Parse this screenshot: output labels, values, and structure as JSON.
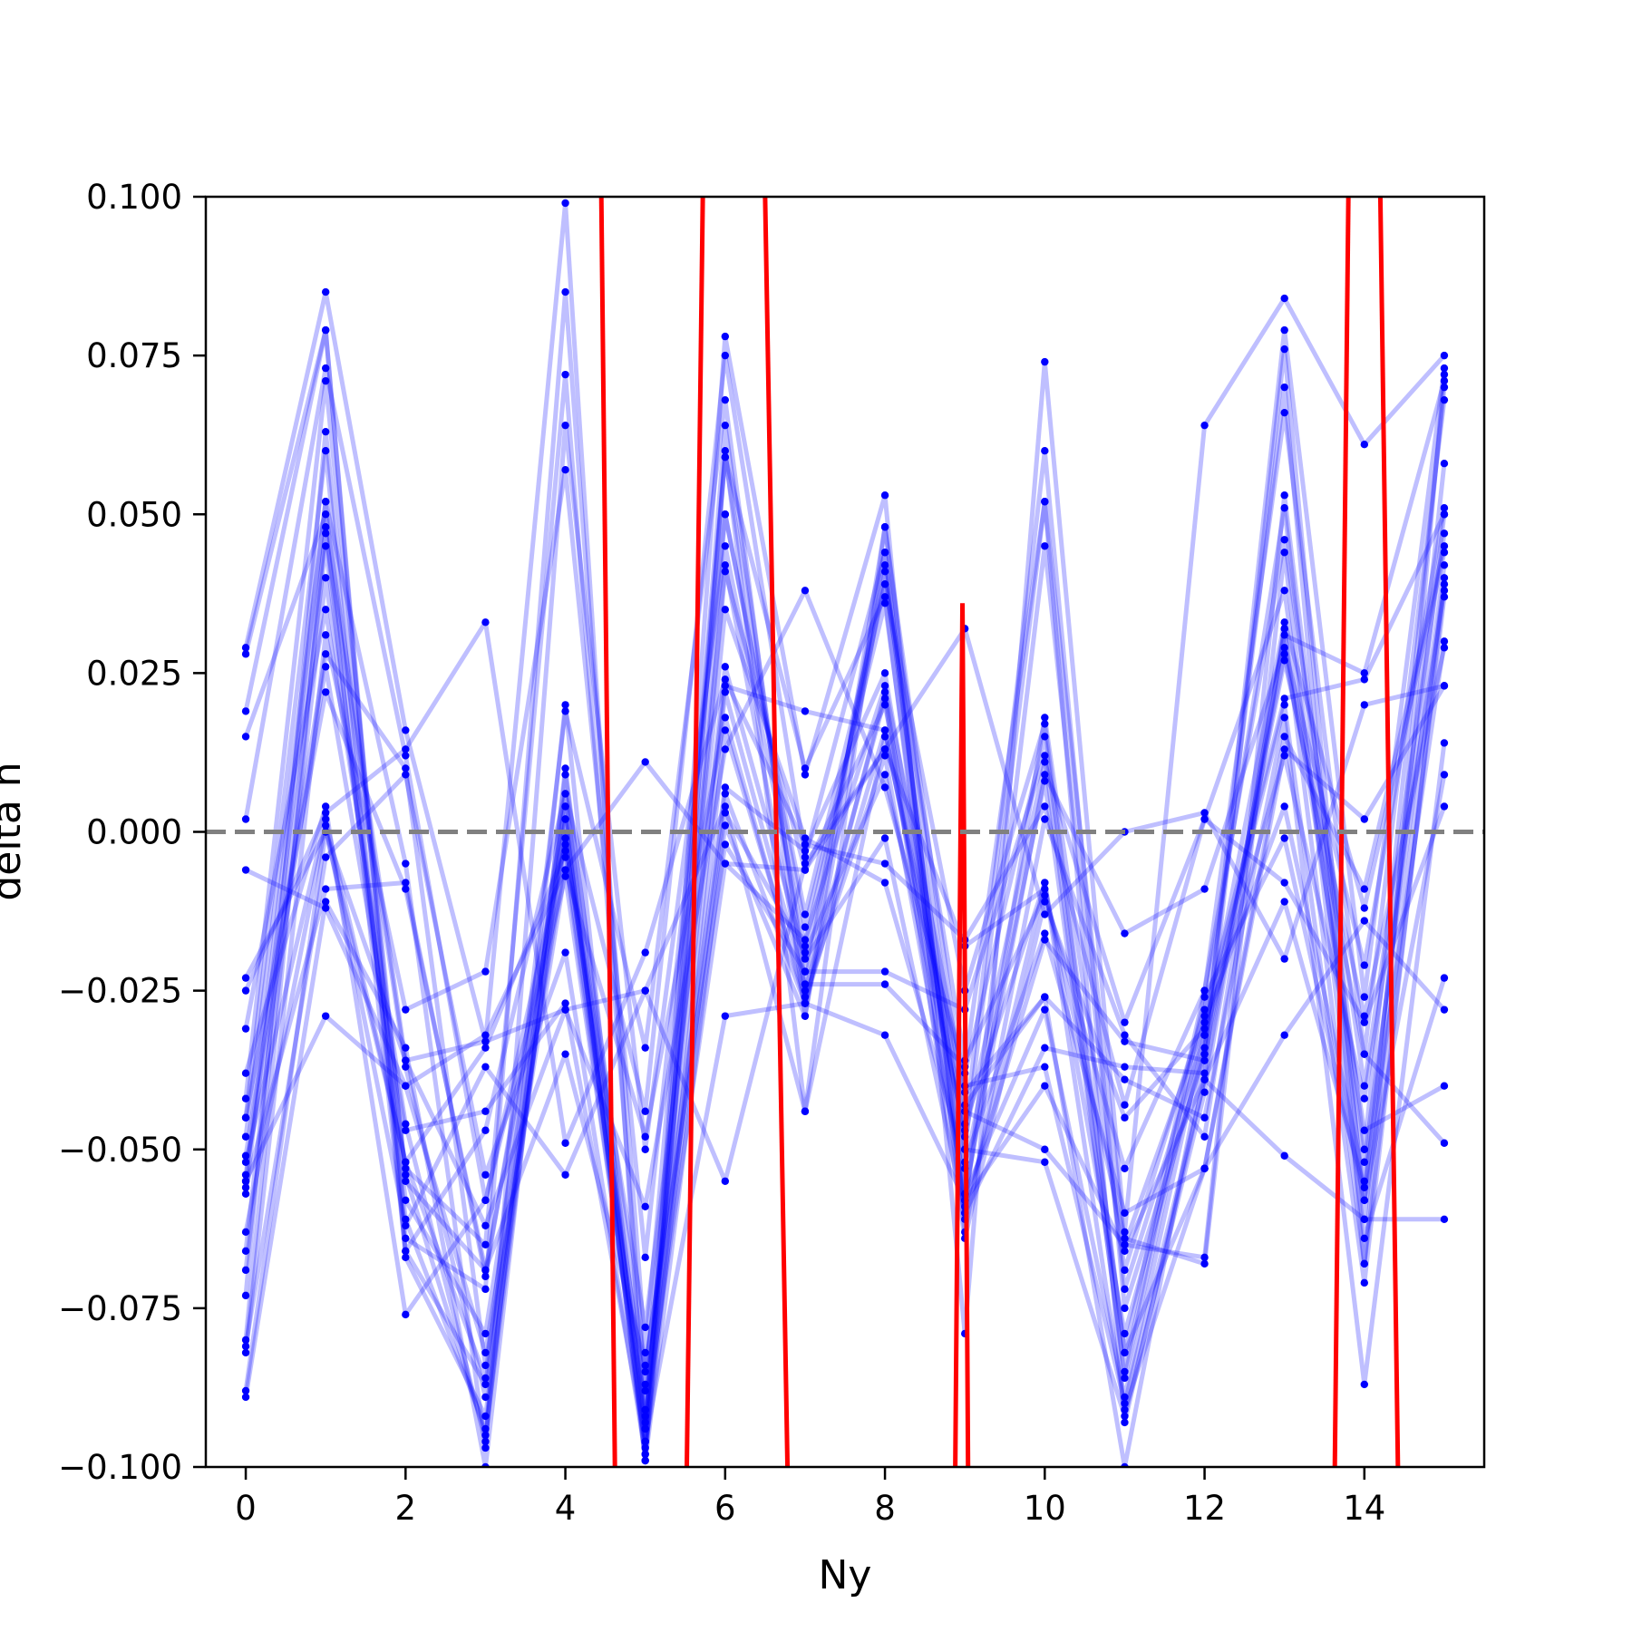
{
  "chart_data": {
    "type": "line",
    "title": "",
    "xlabel": "Ny",
    "ylabel": "delta n",
    "xlim": [
      -0.5,
      15.5
    ],
    "ylim": [
      -0.1,
      0.1
    ],
    "x": [
      0,
      1,
      2,
      3,
      4,
      5,
      6,
      7,
      8,
      9,
      10,
      11,
      12,
      13,
      14,
      15
    ],
    "x_ticks": [
      0,
      2,
      4,
      6,
      8,
      10,
      12,
      14
    ],
    "x_tick_labels": [
      "0",
      "2",
      "4",
      "6",
      "8",
      "10",
      "12",
      "14"
    ],
    "y_ticks": [
      -0.1,
      -0.075,
      -0.05,
      -0.025,
      0.0,
      0.025,
      0.05,
      0.075,
      0.1
    ],
    "y_tick_labels": [
      "−0.100",
      "−0.075",
      "−0.050",
      "−0.025",
      "0.000",
      "0.025",
      "0.050",
      "0.075",
      "0.100"
    ],
    "reference_line": {
      "y": 0.0,
      "style": "dashed",
      "color": "#808080"
    },
    "grid": false,
    "legend": "none",
    "colors": {
      "samples": "#0000ff",
      "mean": "#ff0000"
    },
    "series": [
      {
        "values": [
          0.029,
          0.085,
          0.016,
          -0.033,
          0.099,
          -0.096,
          0.078,
          0.009,
          0.053,
          -0.079,
          0.074,
          -0.063,
          0.064,
          0.084,
          0.061,
          0.075
        ]
      },
      {
        "values": [
          -0.088,
          0.0,
          -0.052,
          -0.086,
          0.019,
          -0.034,
          0.068,
          -0.029,
          0.048,
          -0.05,
          0.052,
          -0.065,
          -0.067,
          0.053,
          -0.05,
          0.07
        ]
      },
      {
        "values": [
          0.019,
          0.079,
          -0.064,
          -0.072,
          0.085,
          -0.082,
          0.059,
          -0.022,
          0.042,
          -0.058,
          0.018,
          -0.069,
          -0.028,
          0.051,
          -0.058,
          0.058
        ]
      },
      {
        "values": [
          -0.055,
          0.052,
          -0.005,
          -0.097,
          0.064,
          -0.05,
          0.045,
          -0.018,
          0.039,
          -0.036,
          -0.01,
          -0.053,
          -0.025,
          0.046,
          -0.04,
          0.047
        ]
      },
      {
        "values": [
          0.002,
          0.073,
          0.012,
          -0.058,
          -0.002,
          -0.078,
          0.023,
          0.019,
          0.016,
          -0.048,
          0.011,
          -0.03,
          0.002,
          0.038,
          -0.052,
          0.042
        ]
      },
      {
        "values": [
          -0.045,
          0.06,
          -0.066,
          -0.047,
          0.006,
          -0.044,
          0.075,
          -0.004,
          0.044,
          -0.06,
          -0.034,
          -0.037,
          -0.038,
          0.076,
          -0.061,
          0.04
        ]
      },
      {
        "values": [
          -0.069,
          0.04,
          -0.053,
          -0.065,
          0.072,
          -0.087,
          0.042,
          -0.025,
          0.021,
          -0.064,
          -0.011,
          -0.045,
          -0.031,
          0.02,
          -0.071,
          0.039
        ]
      },
      {
        "values": [
          -0.082,
          0.031,
          -0.028,
          -0.022,
          0.057,
          -0.067,
          0.05,
          -0.015,
          0.036,
          -0.057,
          0.009,
          -0.016,
          -0.009,
          0.029,
          -0.021,
          0.051
        ]
      },
      {
        "values": [
          0.015,
          0.05,
          -0.036,
          -0.062,
          -0.028,
          -0.059,
          0.013,
          0.038,
          0.007,
          -0.038,
          0.015,
          -0.082,
          -0.053,
          0.013,
          0.002,
          0.023
        ]
      },
      {
        "values": [
          -0.051,
          0.028,
          0.01,
          -0.084,
          -0.006,
          -0.048,
          0.018,
          -0.027,
          0.022,
          -0.059,
          -0.017,
          -0.033,
          -0.036,
          0.027,
          -0.029,
          0.029
        ]
      },
      {
        "values": [
          -0.054,
          0.026,
          -0.047,
          -0.044,
          -0.027,
          -0.096,
          0.059,
          0.01,
          0.037,
          -0.063,
          0.002,
          -0.032,
          -0.048,
          0.032,
          -0.068,
          0.037
        ]
      },
      {
        "values": [
          -0.063,
          0.001,
          -0.062,
          -0.037,
          -0.054,
          -0.025,
          0.004,
          -0.044,
          0.048,
          -0.043,
          -0.026,
          -0.039,
          -0.045,
          0.018,
          -0.087,
          0.014
        ]
      },
      {
        "values": [
          -0.025,
          0.003,
          0.013,
          0.033,
          -0.049,
          -0.019,
          0.024,
          -0.002,
          -0.005,
          -0.017,
          0.004,
          -0.043,
          0.002,
          -0.008,
          -0.03,
          0.004
        ]
      },
      {
        "values": [
          -0.006,
          -0.012,
          -0.04,
          -0.032,
          -0.006,
          0.011,
          -0.005,
          -0.006,
          0.013,
          0.032,
          -0.013,
          0.0,
          0.003,
          -0.02,
          0.02,
          0.023
        ]
      },
      {
        "values": [
          0.028,
          0.079,
          -0.067,
          -0.092,
          0.002,
          -0.097,
          0.022,
          -0.024,
          -0.024,
          -0.037,
          0.052,
          -0.093,
          -0.039,
          0.031,
          0.025,
          0.071
        ]
      },
      {
        "values": [
          -0.042,
          0.071,
          -0.055,
          -0.069,
          -0.001,
          -0.088,
          0.003,
          -0.019,
          0.009,
          -0.047,
          0.06,
          -0.075,
          -0.035,
          0.079,
          -0.026,
          0.073
        ]
      },
      {
        "values": [
          -0.089,
          -0.011,
          -0.034,
          -0.1,
          0.01,
          -0.091,
          0.026,
          -0.02,
          -0.001,
          -0.06,
          0.045,
          -0.072,
          -0.032,
          0.033,
          -0.012,
          0.044
        ]
      },
      {
        "values": [
          -0.038,
          0.004,
          -0.076,
          -0.058,
          -0.007,
          -0.094,
          0.006,
          -0.027,
          0.016,
          -0.046,
          -0.008,
          -0.091,
          -0.053,
          0.015,
          -0.009,
          0.045
        ]
      },
      {
        "values": [
          -0.081,
          -0.004,
          0.009,
          -0.054,
          -0.019,
          -0.098,
          0.016,
          -0.026,
          0.012,
          -0.057,
          -0.028,
          -0.089,
          -0.032,
          0.012,
          -0.042,
          0.038
        ]
      },
      {
        "values": [
          -0.056,
          -0.009,
          -0.008,
          -0.07,
          0.004,
          -0.099,
          0.001,
          -0.029,
          0.041,
          -0.053,
          0.008,
          -0.085,
          -0.026,
          -0.001,
          -0.058,
          0.009
        ]
      },
      {
        "values": [
          -0.052,
          0.002,
          -0.052,
          -0.034,
          -0.003,
          -0.092,
          -0.005,
          -0.017,
          0.023,
          -0.04,
          -0.037,
          -0.09,
          -0.039,
          -0.011,
          -0.056,
          0.03
        ]
      },
      {
        "values": [
          -0.057,
          0.047,
          -0.037,
          -0.089,
          0.006,
          -0.093,
          0.041,
          -0.006,
          0.02,
          -0.044,
          -0.05,
          -0.065,
          -0.03,
          0.004,
          -0.055,
          0.05
        ]
      },
      {
        "values": [
          -0.08,
          0.048,
          -0.066,
          -0.087,
          -0.001,
          -0.091,
          0.035,
          -0.001,
          -0.008,
          -0.052,
          -0.016,
          -0.06,
          -0.053,
          -0.032,
          -0.014,
          -0.028
        ]
      },
      {
        "values": [
          -0.023,
          0.0,
          -0.036,
          -0.033,
          -0.028,
          -0.025,
          -0.055,
          -0.005,
          0.013,
          -0.018,
          -0.009,
          -0.064,
          -0.068,
          0.044,
          -0.064,
          -0.023
        ]
      },
      {
        "values": [
          -0.048,
          0.052,
          -0.061,
          -0.094,
          0.009,
          -0.085,
          0.007,
          -0.003,
          0.025,
          -0.05,
          -0.052,
          -0.092,
          -0.041,
          0.032,
          -0.047,
          -0.04
        ]
      },
      {
        "values": [
          -0.066,
          0.045,
          -0.058,
          -0.079,
          0.002,
          -0.098,
          0.06,
          -0.044,
          0.015,
          -0.041,
          -0.026,
          -0.1,
          -0.035,
          0.028,
          -0.035,
          -0.049
        ]
      },
      {
        "values": [
          -0.055,
          -0.029,
          -0.04,
          -0.082,
          -0.004,
          -0.096,
          -0.029,
          -0.027,
          -0.032,
          -0.058,
          -0.04,
          -0.066,
          -0.039,
          -0.051,
          -0.061,
          -0.061
        ]
      },
      {
        "values": [
          -0.045,
          0.022,
          -0.009,
          -0.069,
          -0.035,
          -0.084,
          -0.002,
          -0.022,
          -0.022,
          -0.028,
          0.012,
          -0.086,
          -0.029,
          0.021,
          0.024,
          0.05
        ]
      },
      {
        "values": [
          -0.031,
          0.035,
          -0.046,
          -0.096,
          0.02,
          -0.099,
          0.05,
          -0.013,
          0.039,
          -0.025,
          0.017,
          -0.082,
          -0.025,
          0.066,
          -0.035,
          0.068
        ]
      },
      {
        "values": [
          -0.073,
          0.063,
          -0.054,
          -0.095,
          0.004,
          -0.094,
          0.064,
          -0.024,
          0.044,
          -0.061,
          -0.008,
          -0.079,
          -0.034,
          0.07,
          -0.068,
          0.072
        ]
      }
    ],
    "mean_line": {
      "name": "mean",
      "points": [
        {
          "x": 4.6,
          "y": 0.1
        },
        {
          "x": 4.6,
          "y": -0.1
        },
        {
          "x": 5.7,
          "y": 0.1
        },
        {
          "x": 5.7,
          "y": -0.1
        },
        {
          "x": 6.5,
          "y": 0.1
        },
        {
          "x": 6.5,
          "y": -0.1
        },
        {
          "x": 9.0,
          "y": 0.036
        },
        {
          "x": 9.0,
          "y": -0.1
        },
        {
          "x": 13.8,
          "y": 0.1
        },
        {
          "x": 13.8,
          "y": -0.1
        },
        {
          "x": 14.2,
          "y": 0.1
        },
        {
          "x": 14.2,
          "y": -0.1
        }
      ],
      "segments": [
        [
          [
            4.45,
            0.1
          ],
          [
            4.62,
            -0.1
          ]
        ],
        [
          [
            5.52,
            -0.1
          ],
          [
            5.72,
            0.1
          ]
        ],
        [
          [
            6.5,
            0.1
          ],
          [
            6.78,
            -0.1
          ]
        ],
        [
          [
            8.88,
            -0.1
          ],
          [
            8.97,
            0.036
          ],
          [
            9.04,
            -0.1
          ]
        ],
        [
          [
            13.63,
            -0.1
          ],
          [
            13.8,
            0.1
          ]
        ],
        [
          [
            14.2,
            0.1
          ],
          [
            14.42,
            -0.1
          ]
        ]
      ]
    }
  }
}
